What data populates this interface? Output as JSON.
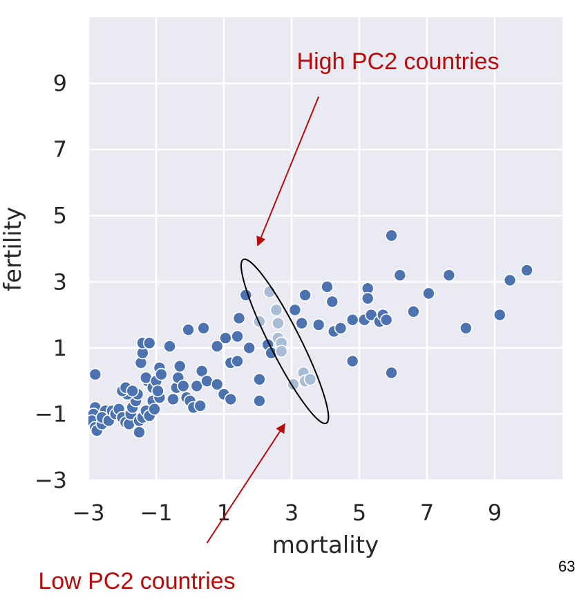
{
  "page_number": "63",
  "chart_data": {
    "type": "scatter",
    "title": "",
    "xlabel": "mortality",
    "ylabel": "fertility",
    "xlim": [
      -3,
      11
    ],
    "ylim": [
      -3,
      11
    ],
    "xticks": [
      -3,
      -1,
      1,
      3,
      5,
      7,
      9
    ],
    "yticks": [
      -3,
      -1,
      1,
      3,
      5,
      7,
      9
    ],
    "xtick_labels": [
      "−3",
      "−1",
      "1",
      "3",
      "5",
      "7",
      "9"
    ],
    "ytick_labels": [
      "−3",
      "−1",
      "1",
      "3",
      "5",
      "7",
      "9"
    ],
    "grid": true,
    "background": "#eaeaf2",
    "colors": {
      "points": "#4c72b0",
      "highlighted_points": "#a9bcd6",
      "ellipse": "#000000",
      "annotation": "#b50b0b"
    },
    "annotations": [
      {
        "text": "High PC2 countries",
        "arrow_from": [
          3.8,
          8.6
        ],
        "arrow_to": [
          2.0,
          4.1
        ]
      },
      {
        "text": "Low PC2 countries",
        "arrow_from": [
          0.5,
          -4.9
        ],
        "arrow_to": [
          2.8,
          -1.3
        ]
      }
    ],
    "ellipse": {
      "center": [
        2.8,
        1.2
      ],
      "corners": [
        [
          1.5,
          3.65
        ],
        [
          3.95,
          -1.3
        ]
      ]
    },
    "series": [
      {
        "role": "other countries",
        "points": [
          [
            -2.8,
            0.2
          ],
          [
            -2.8,
            -0.8
          ],
          [
            -2.85,
            -1.0
          ],
          [
            -2.9,
            -1.2
          ],
          [
            -2.8,
            -1.4
          ],
          [
            -2.75,
            -1.5
          ],
          [
            -2.6,
            -1.3
          ],
          [
            -2.5,
            -0.9
          ],
          [
            -2.6,
            -1.1
          ],
          [
            -2.4,
            -1.2
          ],
          [
            -2.3,
            -0.9
          ],
          [
            -2.2,
            -1.0
          ],
          [
            -2.1,
            -0.85
          ],
          [
            -2.0,
            -1.1
          ],
          [
            -1.9,
            -1.25
          ],
          [
            -1.8,
            -1.3
          ],
          [
            -1.75,
            -1.0
          ],
          [
            -1.7,
            -0.8
          ],
          [
            -1.6,
            -0.6
          ],
          [
            -1.55,
            -0.4
          ],
          [
            -1.85,
            -0.4
          ],
          [
            -2.0,
            -0.3
          ],
          [
            -1.9,
            -0.2
          ],
          [
            -1.7,
            -0.3
          ],
          [
            -1.5,
            -1.2
          ],
          [
            -1.5,
            -1.55
          ],
          [
            -1.4,
            -1.1
          ],
          [
            -1.3,
            -0.9
          ],
          [
            -1.2,
            -1.05
          ],
          [
            -1.1,
            -0.6
          ],
          [
            -1.25,
            0.0
          ],
          [
            -1.3,
            0.1
          ],
          [
            -1.1,
            -0.2
          ],
          [
            -1.0,
            0.0
          ],
          [
            -0.9,
            -0.5
          ],
          [
            -0.95,
            -0.3
          ],
          [
            -1.05,
            -0.85
          ],
          [
            -1.45,
            0.55
          ],
          [
            -1.4,
            0.85
          ],
          [
            -1.4,
            1.15
          ],
          [
            -1.2,
            1.15
          ],
          [
            -0.9,
            0.4
          ],
          [
            -0.85,
            0.2
          ],
          [
            -0.6,
            1.05
          ],
          [
            -0.5,
            -0.55
          ],
          [
            -0.4,
            -0.2
          ],
          [
            -0.35,
            0.1
          ],
          [
            -0.3,
            0.45
          ],
          [
            -0.2,
            -0.15
          ],
          [
            -0.1,
            -0.5
          ],
          [
            -0.05,
            1.55
          ],
          [
            0.0,
            -0.6
          ],
          [
            0.1,
            -0.8
          ],
          [
            0.2,
            -0.15
          ],
          [
            0.3,
            -0.75
          ],
          [
            0.35,
            0.3
          ],
          [
            0.4,
            1.6
          ],
          [
            0.5,
            0.0
          ],
          [
            0.8,
            1.05
          ],
          [
            0.8,
            -0.1
          ],
          [
            1.0,
            -0.4
          ],
          [
            1.05,
            1.3
          ],
          [
            1.2,
            -0.55
          ],
          [
            1.2,
            0.55
          ],
          [
            1.4,
            0.6
          ],
          [
            1.4,
            1.35
          ],
          [
            1.45,
            1.9
          ],
          [
            1.65,
            2.6
          ],
          [
            1.75,
            1.0
          ],
          [
            2.05,
            0.05
          ],
          [
            2.05,
            -0.6
          ],
          [
            2.3,
            1.1
          ],
          [
            2.4,
            0.85
          ],
          [
            3.1,
            2.15
          ],
          [
            3.3,
            1.75
          ],
          [
            3.4,
            2.6
          ],
          [
            3.8,
            1.7
          ],
          [
            4.05,
            2.85
          ],
          [
            4.2,
            2.4
          ],
          [
            4.25,
            1.5
          ],
          [
            4.45,
            1.6
          ],
          [
            4.8,
            1.85
          ],
          [
            4.8,
            0.6
          ],
          [
            5.15,
            1.85
          ],
          [
            5.25,
            2.8
          ],
          [
            5.25,
            2.5
          ],
          [
            5.35,
            2.0
          ],
          [
            5.6,
            1.8
          ],
          [
            5.7,
            2.0
          ],
          [
            5.8,
            1.85
          ],
          [
            5.95,
            4.4
          ],
          [
            5.95,
            0.25
          ],
          [
            6.2,
            3.2
          ],
          [
            6.6,
            2.1
          ],
          [
            7.05,
            2.65
          ],
          [
            7.65,
            3.2
          ],
          [
            8.15,
            1.6
          ],
          [
            9.15,
            2.0
          ],
          [
            9.45,
            3.05
          ],
          [
            9.95,
            3.35
          ]
        ]
      },
      {
        "role": "countries inside ellipse",
        "points": [
          [
            2.05,
            1.8
          ],
          [
            2.35,
            2.7
          ],
          [
            2.55,
            2.15
          ],
          [
            2.6,
            1.75
          ],
          [
            2.6,
            1.3
          ],
          [
            2.7,
            1.15
          ],
          [
            2.7,
            0.9
          ],
          [
            3.05,
            -0.1
          ],
          [
            3.35,
            0.25
          ],
          [
            3.4,
            0.0
          ],
          [
            3.55,
            0.05
          ]
        ]
      }
    ]
  }
}
